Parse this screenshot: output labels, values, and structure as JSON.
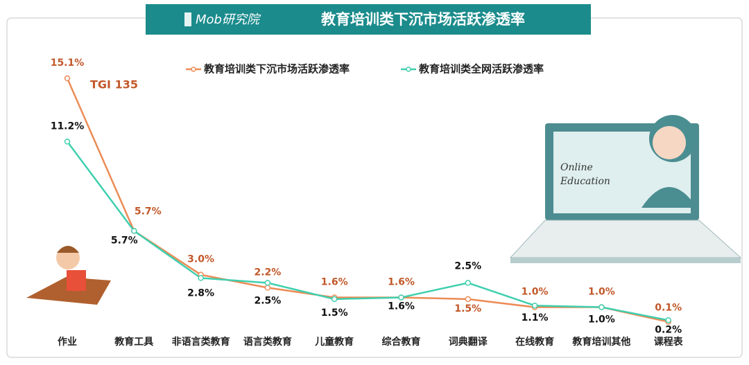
{
  "brand": "Mob研究院",
  "illustration": [
    "Online",
    "Education"
  ],
  "chart_data": {
    "type": "line",
    "title": "教育培训类下沉市场活跃渗透率",
    "annotation": "TGI 135",
    "categories": [
      "作业",
      "教育工具",
      "非语言类教育",
      "语言类教育",
      "儿童教育",
      "综合教育",
      "词典翻译",
      "在线教育",
      "教育培训其他",
      "课程表"
    ],
    "series": [
      {
        "name": "教育培训类下沉市场活跃渗透率",
        "color": "#ec8b55",
        "label_color": "#c2582a",
        "values": [
          15.1,
          5.7,
          3.0,
          2.2,
          1.6,
          1.6,
          1.5,
          1.0,
          1.0,
          0.1
        ],
        "value_labels": [
          "15.1%",
          "5.7%",
          "3.0%",
          "2.2%",
          "1.6%",
          "1.6%",
          "1.5%",
          "1.0%",
          "1.0%",
          "0.1%"
        ]
      },
      {
        "name": "教育培训类全网活跃渗透率",
        "color": "#3fcfae",
        "label_color": "#111111",
        "values": [
          11.2,
          5.7,
          2.8,
          2.5,
          1.5,
          1.6,
          2.5,
          1.1,
          1.0,
          0.2
        ],
        "value_labels": [
          "11.2%",
          "5.7%",
          "2.8%",
          "2.5%",
          "1.5%",
          "1.6%",
          "2.5%",
          "1.1%",
          "1.0%",
          "0.2%"
        ]
      }
    ]
  }
}
